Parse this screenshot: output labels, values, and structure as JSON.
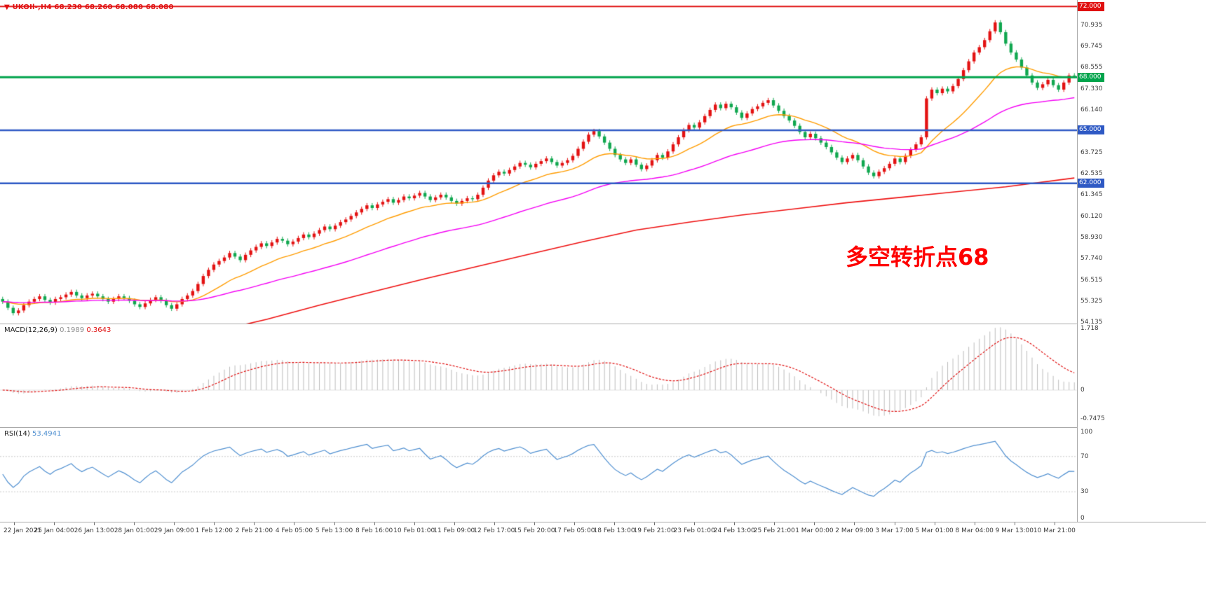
{
  "header": {
    "direction_icon": "▼",
    "symbol_text": "UKOIl-,H4 68.230 68.260 68.080 68.080",
    "color": "#e01010"
  },
  "chart_data": [
    {
      "type": "candlestick",
      "title": "UKOIl-,H4",
      "current_bar": {
        "open": "68.230",
        "high": "68.260",
        "low": "68.080",
        "close": "68.080"
      },
      "y_axis": {
        "min": 54.06,
        "max": 72.37,
        "ticks": [
          70.935,
          69.745,
          68.555,
          67.33,
          66.14,
          63.725,
          62.535,
          61.345,
          60.12,
          58.93,
          57.74,
          56.515,
          55.325,
          54.135
        ]
      },
      "hlines": [
        {
          "price": 72.0,
          "label": "72.000",
          "color": "#e01010",
          "width": 2
        },
        {
          "price": 68.0,
          "label": "68.000",
          "color": "#00a44c",
          "width": 3
        },
        {
          "price": 65.0,
          "label": "65.000",
          "color": "#2e59c4",
          "width": 2.5
        },
        {
          "price": 62.0,
          "label": "62.000",
          "color": "#2e59c4",
          "width": 2.5
        }
      ],
      "candles": {
        "first_open": 55.45,
        "wick": 0.13,
        "up_color": "#e31212",
        "down_color": "#10a74f",
        "closes": [
          55.3,
          54.95,
          54.65,
          54.8,
          55.1,
          55.3,
          55.45,
          55.6,
          55.4,
          55.25,
          55.45,
          55.55,
          55.7,
          55.85,
          55.65,
          55.5,
          55.65,
          55.75,
          55.6,
          55.45,
          55.3,
          55.45,
          55.6,
          55.5,
          55.35,
          55.15,
          55.0,
          55.2,
          55.4,
          55.55,
          55.35,
          55.1,
          54.9,
          55.15,
          55.45,
          55.65,
          55.9,
          56.3,
          56.75,
          57.1,
          57.4,
          57.6,
          57.8,
          58.05,
          57.85,
          57.65,
          57.95,
          58.2,
          58.4,
          58.6,
          58.45,
          58.65,
          58.85,
          58.75,
          58.55,
          58.7,
          58.9,
          59.1,
          58.95,
          59.15,
          59.35,
          59.55,
          59.4,
          59.6,
          59.8,
          59.95,
          60.15,
          60.35,
          60.55,
          60.75,
          60.6,
          60.8,
          60.95,
          61.1,
          60.9,
          61.05,
          61.25,
          61.15,
          61.3,
          61.45,
          61.25,
          61.05,
          61.2,
          61.35,
          61.2,
          61.0,
          60.85,
          61.0,
          61.15,
          61.1,
          61.35,
          61.75,
          62.15,
          62.45,
          62.65,
          62.55,
          62.75,
          62.95,
          63.15,
          63.05,
          62.9,
          63.1,
          63.25,
          63.4,
          63.2,
          63.0,
          63.15,
          63.3,
          63.55,
          63.95,
          64.35,
          64.75,
          64.95,
          64.65,
          64.3,
          63.95,
          63.6,
          63.35,
          63.15,
          63.35,
          63.05,
          62.8,
          63.0,
          63.3,
          63.6,
          63.45,
          63.8,
          64.2,
          64.6,
          65.0,
          65.3,
          65.15,
          65.45,
          65.8,
          66.15,
          66.45,
          66.25,
          66.5,
          66.3,
          66.0,
          65.7,
          65.95,
          66.2,
          66.35,
          66.55,
          66.7,
          66.4,
          66.1,
          65.8,
          65.55,
          65.25,
          64.9,
          64.6,
          64.8,
          64.55,
          64.3,
          64.05,
          63.75,
          63.45,
          63.2,
          63.4,
          63.6,
          63.3,
          62.95,
          62.6,
          62.4,
          62.65,
          62.85,
          63.1,
          63.4,
          63.2,
          63.55,
          63.9,
          64.2,
          64.6,
          66.8,
          67.3,
          67.1,
          67.35,
          67.2,
          67.5,
          67.9,
          68.4,
          68.9,
          69.4,
          69.7,
          70.1,
          70.6,
          71.1,
          70.55,
          69.9,
          69.4,
          69.0,
          68.55,
          68.1,
          67.7,
          67.4,
          67.6,
          67.85,
          67.55,
          67.3,
          67.7,
          68.1,
          68.08
        ]
      },
      "ma": {
        "fast": {
          "period": 18,
          "color": "#ff9c00"
        },
        "mid": {
          "period": 55,
          "color": "#f400f4"
        },
        "slow": {
          "color": "#ee1111",
          "points": [
            [
              40,
              53.6
            ],
            [
              50,
              54.3
            ],
            [
              60,
              55.1
            ],
            [
              70,
              55.85
            ],
            [
              80,
              56.6
            ],
            [
              90,
              57.3
            ],
            [
              100,
              58.0
            ],
            [
              110,
              58.7
            ],
            [
              120,
              59.35
            ],
            [
              130,
              59.8
            ],
            [
              140,
              60.2
            ],
            [
              150,
              60.55
            ],
            [
              160,
              60.9
            ],
            [
              170,
              61.2
            ],
            [
              180,
              61.5
            ],
            [
              190,
              61.8
            ],
            [
              203,
              62.3
            ]
          ]
        }
      },
      "annotation": {
        "text": "多空转折点68",
        "color": "#fe0000"
      }
    },
    {
      "type": "macd",
      "label": "MACD(12,26,9)",
      "value_main": "0.1989",
      "value_signal": "0.3643",
      "fast": 12,
      "slow": 26,
      "signal_period": 9,
      "range": {
        "min": -0.975,
        "max": 1.73
      },
      "ticks": [
        {
          "v": 1.718,
          "t": "1.718"
        },
        {
          "v": 0,
          "t": "0"
        },
        {
          "v": -0.7475,
          "t": "-0.7475"
        }
      ],
      "hist_color": "#bdbdbd",
      "signal_color": "#e01010"
    },
    {
      "type": "line",
      "label": "RSI(14)",
      "value_text": "53.4941",
      "period": 14,
      "range": [
        0,
        100
      ],
      "levels": [
        70,
        30
      ],
      "level_color": "#c9c9c9",
      "ticks": [
        {
          "v": 100,
          "t": "100"
        },
        {
          "v": 70,
          "t": "70"
        },
        {
          "v": 30,
          "t": "30"
        },
        {
          "v": 0,
          "t": "0"
        }
      ],
      "color": "#4f8fd0"
    }
  ],
  "time_axis": {
    "labels": [
      "22 Jan 2021",
      "25 Jan 04:00",
      "26 Jan 13:00",
      "28 Jan 01:00",
      "29 Jan 09:00",
      "1 Feb 12:00",
      "2 Feb 21:00",
      "4 Feb 05:00",
      "5 Feb 13:00",
      "8 Feb 16:00",
      "10 Feb 01:00",
      "11 Feb 09:00",
      "12 Feb 17:00",
      "15 Feb 20:00",
      "17 Feb 05:00",
      "18 Feb 13:00",
      "19 Feb 21:00",
      "23 Feb 01:00",
      "24 Feb 13:00",
      "25 Feb 21:00",
      "1 Mar 00:00",
      "2 Mar 09:00",
      "3 Mar 17:00",
      "5 Mar 01:00",
      "8 Mar 04:00",
      "9 Mar 13:00",
      "10 Mar 21:00"
    ]
  }
}
